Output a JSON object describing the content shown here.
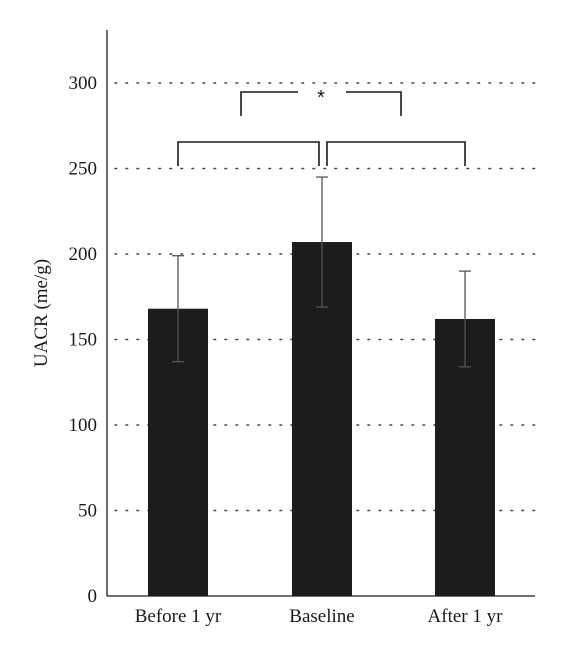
{
  "chart_data": {
    "type": "bar",
    "ylabel": "UACR (me/g)",
    "xlabel": "",
    "ylim": [
      0,
      330
    ],
    "yticks": [
      0,
      50,
      100,
      150,
      200,
      250,
      300
    ],
    "grid": "dotted horizontal",
    "categories": [
      "Before 1 yr",
      "Baseline",
      "After 1 yr"
    ],
    "values": [
      168,
      207,
      162
    ],
    "error_bars": [
      {
        "low": 137,
        "high": 199
      },
      {
        "low": 169,
        "high": 245
      },
      {
        "low": 134,
        "high": 190
      }
    ],
    "significance": {
      "label": "*",
      "comparison": [
        "Before 1 yr",
        "After 1 yr"
      ],
      "pairs": [
        [
          "Before 1 yr",
          "Baseline"
        ],
        [
          "Baseline",
          "After 1 yr"
        ]
      ]
    },
    "colors": {
      "bar": "#1c1c1a",
      "error_bar": "#555555",
      "axis": "#1a1a1a",
      "grid": "#444444"
    }
  }
}
